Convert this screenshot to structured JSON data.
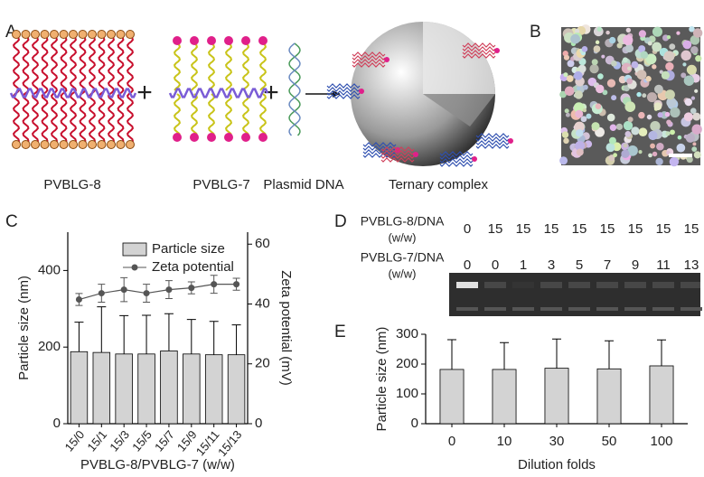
{
  "panel_labels": [
    "A",
    "B",
    "C",
    "D",
    "E"
  ],
  "schematic": {
    "labels": [
      "PVBLG-8",
      "PVBLG-7",
      "Plasmid DNA",
      "Ternary complex"
    ],
    "operators": [
      "+",
      "+"
    ]
  },
  "gel": {
    "rows": [
      {
        "label": "PVBLG-8/DNA",
        "unit": "(w/w)",
        "values": [
          0,
          15,
          15,
          15,
          15,
          15,
          15,
          15,
          15
        ]
      },
      {
        "label": "PVBLG-7/DNA",
        "unit": "(w/w)",
        "values": [
          0,
          0,
          1,
          3,
          5,
          7,
          9,
          11,
          13
        ]
      }
    ]
  },
  "chart_data": [
    {
      "type": "combo",
      "x_label": "PVBLG-8/PVBLG-7 (w/w)",
      "y_label": "Particle size (nm)",
      "y2_label": "Zeta potential (mV)",
      "categories": [
        "15/0",
        "15/1",
        "15/3",
        "15/5",
        "15/7",
        "15/9",
        "15/11",
        "15/13"
      ],
      "series": [
        {
          "name": "Particle size",
          "type": "bar",
          "color": "#d3d3d3",
          "values": [
            188,
            186,
            182,
            182,
            190,
            182,
            180,
            180
          ],
          "errors": [
            77,
            119,
            100,
            101,
            97,
            90,
            87,
            78
          ]
        },
        {
          "name": "Zeta potential",
          "type": "line",
          "axis": "y2",
          "color": "#555555",
          "values": [
            41.5,
            43.6,
            44.8,
            43.6,
            44.8,
            45.4,
            46.6,
            46.6
          ],
          "errors": [
            2,
            3,
            4,
            3,
            3,
            2,
            3,
            2
          ]
        }
      ],
      "ylim": [
        0,
        500
      ],
      "yticks": [
        0,
        200,
        400
      ],
      "y2lim": [
        0,
        64
      ],
      "y2ticks": [
        0,
        20,
        40,
        60
      ],
      "legend": "upper right"
    },
    {
      "type": "bar",
      "x_label": "Dilution folds",
      "y_label": "Particle size (nm)",
      "categories": [
        "0",
        "10",
        "30",
        "50",
        "100"
      ],
      "color": "#d3d3d3",
      "values": [
        182,
        182,
        186,
        184,
        194
      ],
      "errors": [
        100,
        90,
        98,
        94,
        87
      ],
      "ylim": [
        0,
        300
      ],
      "yticks": [
        0,
        100,
        200,
        300
      ]
    }
  ]
}
